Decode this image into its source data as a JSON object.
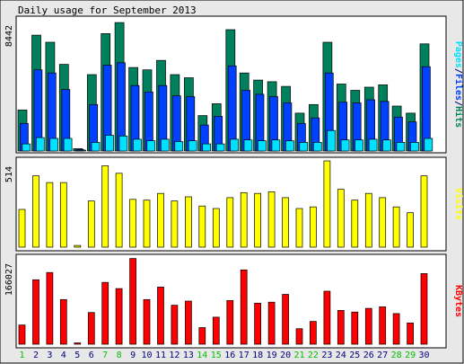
{
  "title": "Daily usage for September 2013",
  "colors": {
    "background": "#e8e8e8",
    "panel": "#ffffff",
    "hits": "#00805c",
    "files": "#0040ff",
    "pages": "#00e0ff",
    "visits": "#ffff00",
    "kbytes": "#ff0000",
    "weekday_label": "#000080",
    "weekend_label": "#00c000"
  },
  "chart_data": [
    {
      "type": "bar",
      "panel": "top",
      "ymax_label": "8442",
      "ymax": 8442,
      "legend": [
        {
          "text": "Pages",
          "color": "#00e0ff"
        },
        {
          "text": "/",
          "color": "#000080"
        },
        {
          "text": "Files",
          "color": "#0040ff"
        },
        {
          "text": "/",
          "color": "#000080"
        },
        {
          "text": "Hits",
          "color": "#00805c"
        }
      ],
      "categories": [
        "1",
        "2",
        "3",
        "4",
        "5",
        "6",
        "7",
        "8",
        "9",
        "10",
        "11",
        "12",
        "13",
        "14",
        "15",
        "16",
        "17",
        "18",
        "19",
        "20",
        "21",
        "22",
        "23",
        "24",
        "25",
        "26",
        "27",
        "28",
        "29",
        "30"
      ],
      "weekend_days": [
        "1",
        "7",
        "8",
        "14",
        "15",
        "21",
        "22",
        "28",
        "29"
      ],
      "series": [
        {
          "name": "Hits",
          "color": "#00805c",
          "values": [
            2600,
            7350,
            6900,
            5500,
            150,
            4850,
            7450,
            8150,
            5300,
            5150,
            5750,
            4850,
            4650,
            2250,
            3000,
            7700,
            4950,
            4500,
            4400,
            4100,
            2400,
            2950,
            6900,
            4250,
            3850,
            4050,
            4200,
            2850,
            2400,
            6800
          ]
        },
        {
          "name": "Files",
          "color": "#0040ff",
          "values": [
            1750,
            5150,
            4950,
            3900,
            100,
            2950,
            5450,
            5600,
            4150,
            3750,
            4150,
            3500,
            3450,
            1650,
            2200,
            5400,
            3850,
            3600,
            3450,
            3050,
            1750,
            2100,
            4950,
            3100,
            3050,
            3250,
            3150,
            2150,
            1850,
            5350
          ]
        },
        {
          "name": "Pages",
          "color": "#00e0ff",
          "values": [
            450,
            850,
            800,
            800,
            50,
            550,
            1000,
            950,
            750,
            650,
            750,
            600,
            650,
            450,
            450,
            750,
            700,
            650,
            700,
            650,
            550,
            550,
            1300,
            700,
            700,
            750,
            700,
            550,
            550,
            800
          ]
        }
      ]
    },
    {
      "type": "bar",
      "panel": "middle",
      "ymax_label": "514",
      "ymax": 514,
      "legend": [
        {
          "text": "Visits",
          "color": "#ffff00"
        }
      ],
      "categories": [
        "1",
        "2",
        "3",
        "4",
        "5",
        "6",
        "7",
        "8",
        "9",
        "10",
        "11",
        "12",
        "13",
        "14",
        "15",
        "16",
        "17",
        "18",
        "19",
        "20",
        "21",
        "22",
        "23",
        "24",
        "25",
        "26",
        "27",
        "28",
        "29",
        "30"
      ],
      "series": [
        {
          "name": "Visits",
          "color": "#ffff00",
          "values": [
            225,
            425,
            385,
            385,
            10,
            275,
            485,
            440,
            285,
            280,
            320,
            275,
            300,
            245,
            230,
            295,
            325,
            320,
            330,
            295,
            230,
            240,
            514,
            345,
            280,
            320,
            295,
            240,
            205,
            425
          ]
        }
      ]
    },
    {
      "type": "bar",
      "panel": "bottom",
      "ymax_label": "166027",
      "ymax": 166027,
      "legend": [
        {
          "text": "KBytes",
          "color": "#ff0000"
        }
      ],
      "categories": [
        "1",
        "2",
        "3",
        "4",
        "5",
        "6",
        "7",
        "8",
        "9",
        "10",
        "11",
        "12",
        "13",
        "14",
        "15",
        "16",
        "17",
        "18",
        "19",
        "20",
        "21",
        "22",
        "23",
        "24",
        "25",
        "26",
        "27",
        "28",
        "29",
        "30"
      ],
      "series": [
        {
          "name": "KBytes",
          "color": "#ff0000",
          "values": [
            37000,
            124000,
            138000,
            86000,
            2000,
            61000,
            119000,
            107000,
            165000,
            86000,
            110000,
            75000,
            83000,
            32000,
            52000,
            84000,
            143000,
            79000,
            81000,
            96000,
            30000,
            44000,
            102000,
            65000,
            62000,
            69000,
            72000,
            59000,
            41000,
            136000
          ]
        }
      ]
    }
  ]
}
